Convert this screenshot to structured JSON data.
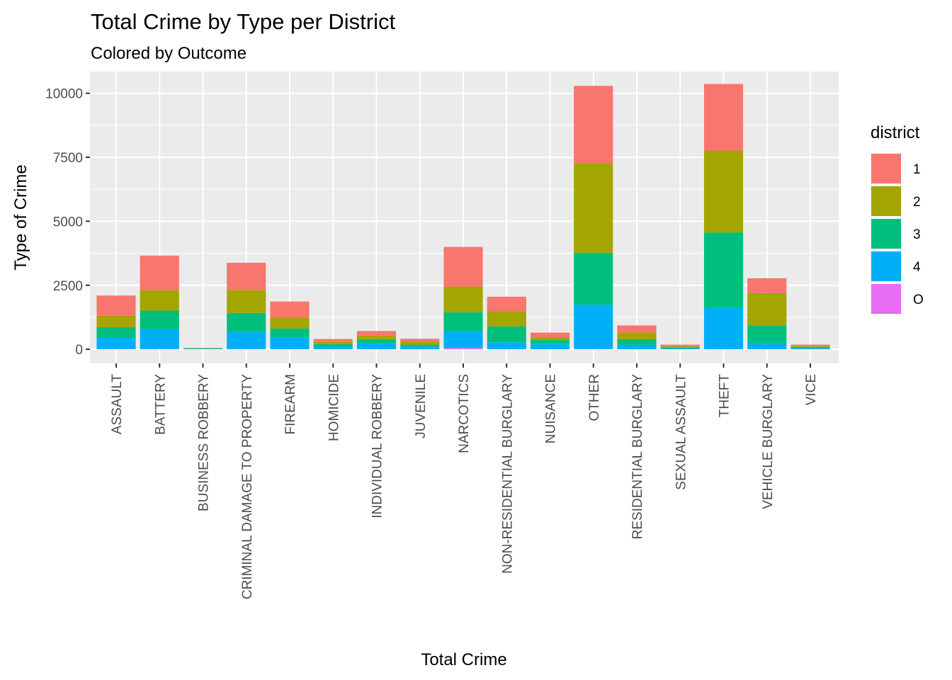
{
  "chart_data": {
    "type": "bar",
    "stacked": true,
    "title": "Total Crime by Type per District",
    "subtitle": "Colored by Outcome",
    "xlabel": "Total Crime",
    "ylabel": "Type of Crime",
    "ylim": [
      -550,
      10850
    ],
    "yticks": [
      0,
      2500,
      5000,
      7500,
      10000
    ],
    "ytick_labels": [
      "0",
      "2500",
      "5000",
      "7500",
      "10000"
    ],
    "grid": true,
    "legend_position": "right",
    "legend_title": "district",
    "categories": [
      "ASSAULT",
      "BATTERY",
      "BUSINESS ROBBERY",
      "CRIMINAL DAMAGE TO PROPERTY",
      "FIREARM",
      "HOMICIDE",
      "INDIVIDUAL ROBBERY",
      "JUVENILE",
      "NARCOTICS",
      "NON-RESIDENTIAL BURGLARY",
      "NUISANCE",
      "OTHER",
      "RESIDENTIAL BURGLARY",
      "SEXUAL ASSAULT",
      "THEFT",
      "VEHICLE BURGLARY",
      "VICE"
    ],
    "series": [
      {
        "name": "O",
        "color": "#E76BF3",
        "values": [
          10,
          10,
          2,
          10,
          5,
          2,
          5,
          2,
          50,
          5,
          2,
          10,
          2,
          2,
          5,
          5,
          2
        ]
      },
      {
        "name": "4",
        "color": "#00B0F6",
        "values": [
          450,
          780,
          10,
          660,
          450,
          110,
          230,
          100,
          660,
          270,
          200,
          1730,
          180,
          30,
          1630,
          250,
          50
        ]
      },
      {
        "name": "3",
        "color": "#00BF7D",
        "values": [
          400,
          720,
          30,
          750,
          360,
          90,
          160,
          80,
          740,
          620,
          160,
          2030,
          210,
          30,
          2930,
          680,
          40
        ]
      },
      {
        "name": "2",
        "color": "#A3A500",
        "values": [
          450,
          800,
          10,
          900,
          420,
          80,
          140,
          110,
          1000,
          600,
          110,
          3500,
          260,
          60,
          3200,
          1260,
          40
        ]
      },
      {
        "name": "1",
        "color": "#F8766D",
        "values": [
          790,
          1350,
          5,
          1060,
          630,
          120,
          180,
          120,
          1550,
          560,
          180,
          3020,
          280,
          60,
          2600,
          580,
          50
        ]
      }
    ],
    "legend_entries": [
      "1",
      "2",
      "3",
      "4",
      "O"
    ]
  }
}
